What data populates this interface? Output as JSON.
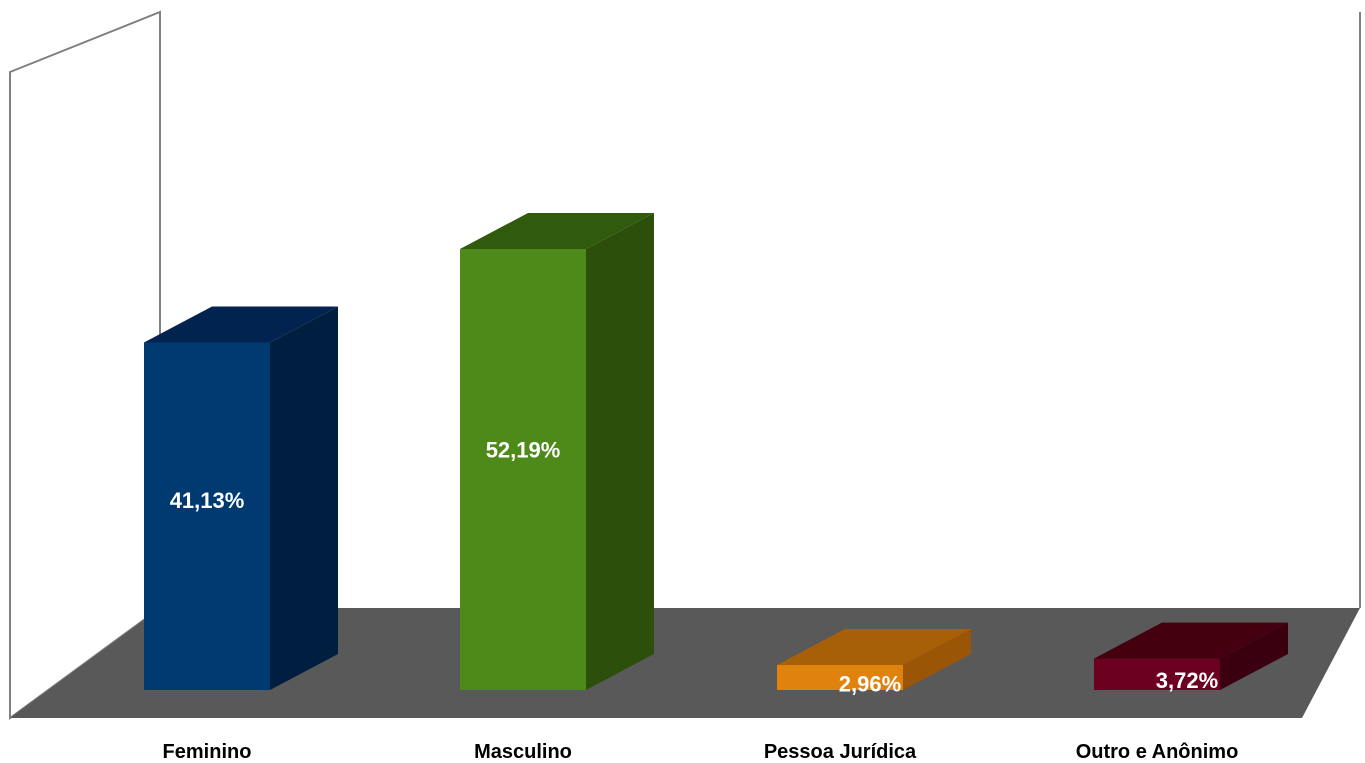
{
  "chart_data": {
    "type": "bar",
    "style": "3d-column",
    "categories": [
      "Feminino",
      "Masculino",
      "Pessoa Jurídica",
      "Outro e Anônimo"
    ],
    "values": [
      41.13,
      52.19,
      2.96,
      3.72
    ],
    "value_labels": [
      "41,13%",
      "52,19%",
      "2,96%",
      "3,72%"
    ],
    "ylim": [
      0,
      60
    ],
    "grid": false,
    "legend": "none",
    "colors": {
      "front": [
        "#003a70",
        "#4e8a1a",
        "#e0820e",
        "#6b0020"
      ],
      "side": [
        "#001f40",
        "#2c4f0c",
        "#9a5606",
        "#3a0010"
      ],
      "top": [
        "#002350",
        "#305a0c",
        "#a86008",
        "#45000f"
      ],
      "floor": "#595959",
      "walls": "#ffffff",
      "wall_edge": "#808080"
    }
  }
}
